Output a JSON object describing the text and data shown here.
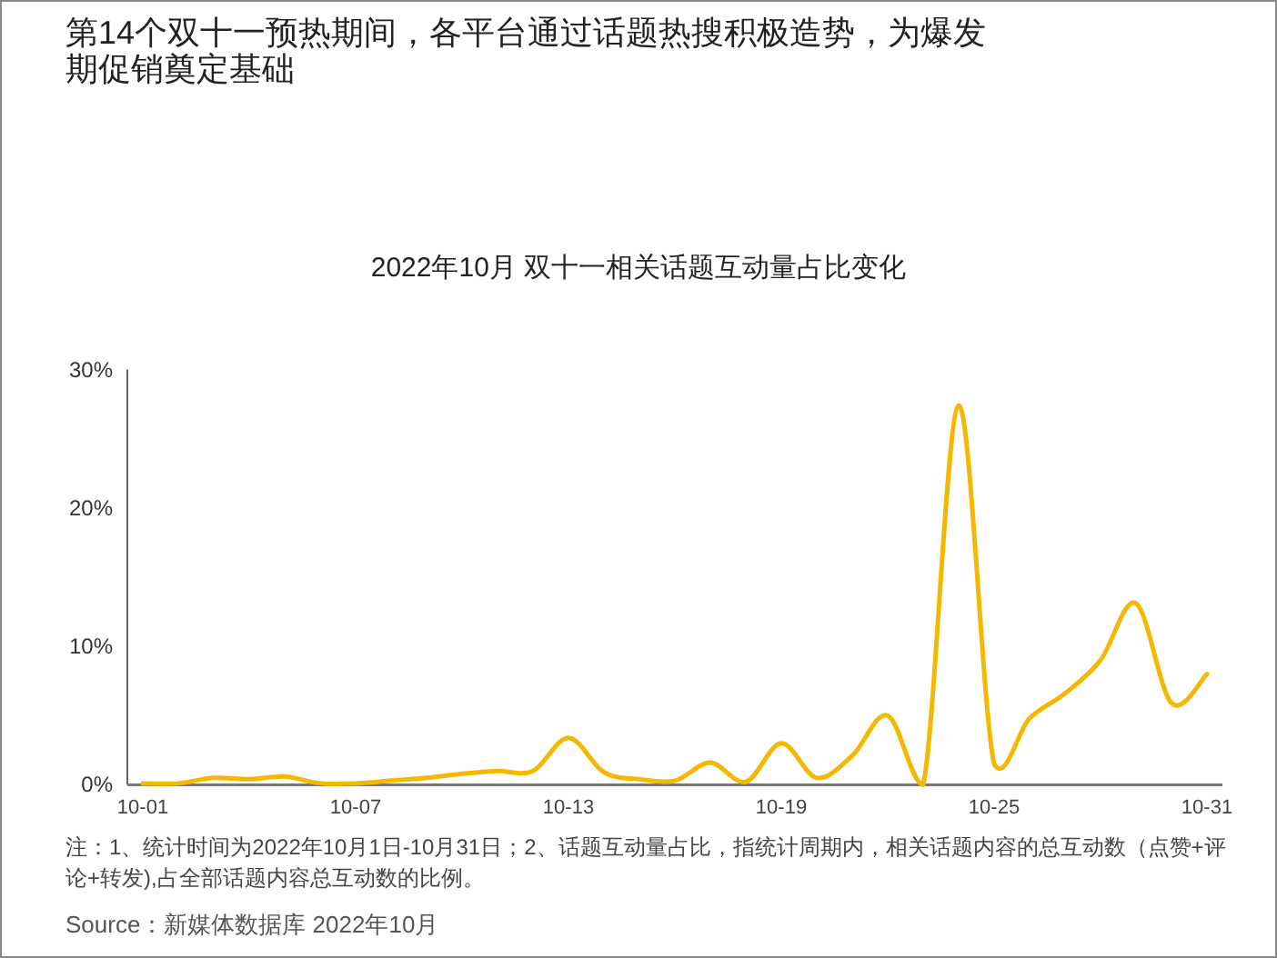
{
  "chart_data": {
    "type": "line",
    "title": "第14个双十一预热期间，各平台通过话题热搜积极造势，为爆发期促销奠定基础",
    "subtitle": "2022年10月 双十一相关话题互动量占比变化",
    "categories": [
      "10-01",
      null,
      null,
      null,
      null,
      null,
      "10-07",
      null,
      null,
      null,
      null,
      null,
      "10-13",
      null,
      null,
      null,
      null,
      null,
      "10-19",
      null,
      null,
      null,
      null,
      null,
      "10-25",
      null,
      null,
      null,
      null,
      null,
      "10-31"
    ],
    "series": [
      {
        "color": "#f5b800",
        "values": [
          0.1,
          0.1,
          0.5,
          0.4,
          0.6,
          0.1,
          0.1,
          0.3,
          0.5,
          0.8,
          1.0,
          1.0,
          3.4,
          0.9,
          0.4,
          0.3,
          1.6,
          0.2,
          3.0,
          0.5,
          2.1,
          5.0,
          0,
          27.4,
          1.5,
          4.8,
          6.6,
          9.0,
          13.1,
          5.9,
          8.0
        ]
      }
    ],
    "ylim": [
      0,
      30
    ],
    "yticks": [
      {
        "value": 0,
        "label": "0%"
      },
      {
        "value": 10,
        "label": "10%"
      },
      {
        "value": 20,
        "label": "20%"
      },
      {
        "value": 30,
        "label": "30%"
      }
    ],
    "grid": false,
    "marker": "none",
    "line_style": "solid",
    "annotations": [
      "注：1、统计时间为2022年10月1日-10月31日；2、话题互动量占比，指统计周期内，相关话题内容的总互动数（点赞+评论+转发),占全部话题内容总互动数的比例。",
      "Source：新媒体数据库 2022年10月"
    ]
  }
}
